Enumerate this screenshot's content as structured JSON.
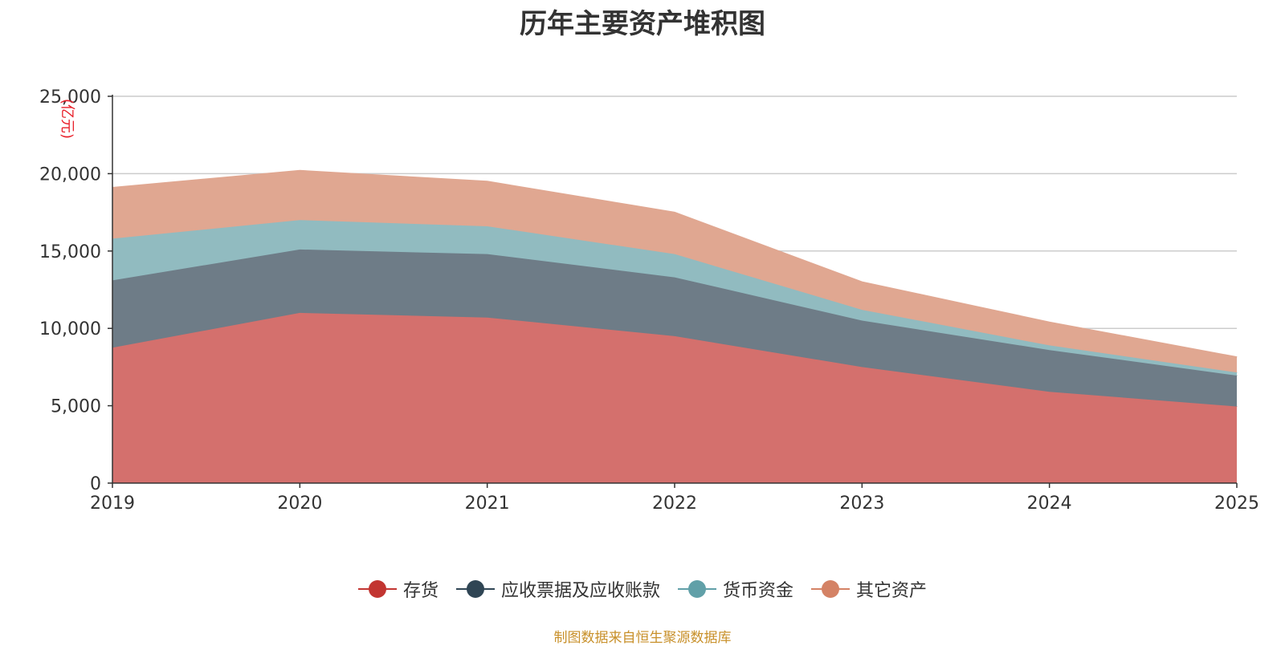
{
  "chart_data": {
    "type": "area",
    "stacked": true,
    "title": "历年主要资产堆积图",
    "ylabel": "(亿元)",
    "xlabel": "",
    "categories": [
      "2019",
      "2020",
      "2021",
      "2022",
      "2023",
      "2024",
      "2025"
    ],
    "ylim": [
      0,
      25000
    ],
    "yticks": [
      0,
      5000,
      10000,
      15000,
      20000,
      25000
    ],
    "ytick_labels": [
      "0",
      "5,000",
      "10,000",
      "15,000",
      "20,000",
      "25,000"
    ],
    "grid": true,
    "legend_position": "bottom",
    "series": [
      {
        "name": "存货",
        "color": "#c23531",
        "fill": "#d4706d",
        "values": [
          8750,
          11000,
          10700,
          9500,
          7500,
          5900,
          4950
        ]
      },
      {
        "name": "应收票据及应收账款",
        "color": "#2f4554",
        "fill": "#6e7c87",
        "values": [
          4350,
          4100,
          4100,
          3800,
          3000,
          2700,
          2000
        ]
      },
      {
        "name": "货币资金",
        "color": "#61a0a8",
        "fill": "#91bbc0",
        "values": [
          2700,
          1900,
          1800,
          1500,
          700,
          300,
          200
        ]
      },
      {
        "name": "其它资产",
        "color": "#d48265",
        "fill": "#e0a791",
        "values": [
          3300,
          3200,
          2900,
          2700,
          1800,
          1500,
          1000
        ]
      }
    ]
  },
  "source_note": "制图数据来自恒生聚源数据库"
}
